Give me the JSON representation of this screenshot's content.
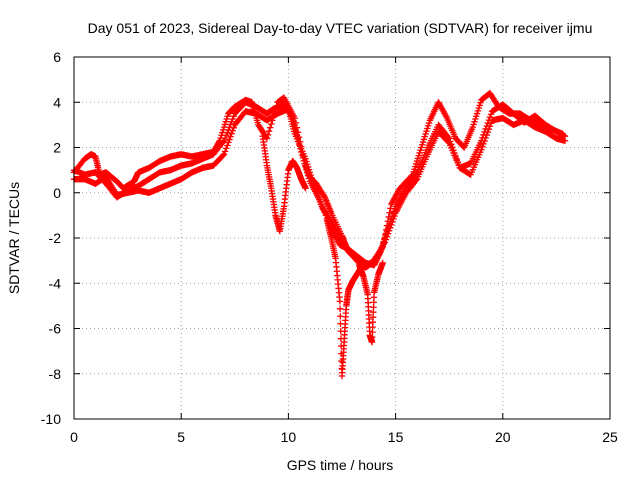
{
  "chart_data": {
    "type": "scatter",
    "title": "Day 051 of 2023, Sidereal Day-to-day VTEC variation (SDTVAR) for receiver ijmu",
    "xlabel": "GPS time / hours",
    "ylabel": "SDTVAR / TECUs",
    "xlim": [
      0,
      25
    ],
    "ylim": [
      -10,
      6
    ],
    "xticks": [
      0,
      5,
      10,
      15,
      20,
      25
    ],
    "yticks": [
      -10,
      -8,
      -6,
      -4,
      -2,
      0,
      2,
      4,
      6
    ],
    "grid": true,
    "legend": "none",
    "marker": "plus",
    "series_color": "#ff0000",
    "series": [
      {
        "x": [
          0.0,
          0.5,
          0.8,
          1.0,
          1.2,
          1.5,
          2.0,
          2.3,
          2.8,
          3.0,
          3.5,
          4.0,
          4.5,
          5.0,
          5.5,
          6.0,
          6.5,
          6.8,
          7.2,
          7.5,
          8.0,
          8.3,
          8.6,
          9.0,
          9.5,
          9.8,
          10.3,
          10.8,
          11.0,
          11.3,
          11.7,
          12.0,
          12.5,
          12.7,
          13.2,
          13.6,
          13.9,
          14.4,
          14.8,
          15.2,
          15.8,
          16.2,
          16.6,
          17.0,
          17.4,
          17.8,
          18.2,
          18.6,
          19.0,
          19.4,
          19.8,
          20.3,
          20.8,
          21.3,
          21.8,
          22.3,
          22.8
        ],
        "y": [
          0.9,
          1.5,
          1.7,
          1.6,
          0.8,
          0.9,
          0.5,
          0.2,
          0.5,
          0.9,
          1.1,
          1.4,
          1.6,
          1.7,
          1.6,
          1.7,
          1.8,
          2.3,
          3.5,
          3.8,
          4.1,
          4.0,
          3.0,
          2.4,
          4.0,
          4.2,
          3.3,
          1.2,
          0.7,
          0.4,
          -0.2,
          -0.9,
          -1.9,
          -2.4,
          -2.9,
          -3.3,
          -3.1,
          -2.4,
          -0.5,
          0.2,
          0.8,
          2.0,
          3.2,
          4.0,
          3.3,
          2.4,
          2.0,
          2.9,
          4.1,
          4.4,
          3.8,
          3.5,
          3.5,
          3.2,
          3.0,
          2.8,
          2.6
        ]
      },
      {
        "x": [
          0.0,
          0.5,
          1.0,
          1.5,
          2.0,
          2.5,
          3.0,
          3.5,
          4.0,
          4.5,
          5.0,
          5.5,
          6.0,
          6.5,
          7.0,
          7.5,
          8.0,
          8.5,
          9.0,
          9.3,
          9.8,
          10.2,
          10.6,
          11.0,
          11.5,
          12.0,
          12.4,
          12.8,
          13.2,
          13.6,
          14.0,
          14.3,
          14.6,
          15.0,
          15.5,
          16.0,
          16.5,
          17.0,
          17.5,
          18.0,
          18.5,
          19.0,
          19.5,
          20.0,
          20.5,
          21.0,
          21.5,
          22.0,
          22.5,
          22.9
        ],
        "y": [
          1.0,
          0.8,
          0.9,
          0.4,
          -0.2,
          0.1,
          0.3,
          0.6,
          0.9,
          1.0,
          1.2,
          1.3,
          1.5,
          1.7,
          2.3,
          3.5,
          4.0,
          3.8,
          3.5,
          3.7,
          3.9,
          3.3,
          1.8,
          0.5,
          -0.4,
          -1.6,
          -2.3,
          -2.5,
          -2.8,
          -3.1,
          -3.2,
          -2.6,
          -1.7,
          -0.6,
          0.3,
          0.9,
          2.0,
          3.0,
          2.4,
          1.1,
          1.3,
          2.3,
          3.6,
          3.9,
          3.5,
          3.1,
          3.4,
          3.0,
          2.7,
          2.5
        ]
      },
      {
        "x": [
          0.0,
          0.5,
          1.0,
          1.5,
          2.0,
          2.5,
          3.0,
          3.5,
          4.0,
          4.5,
          5.0,
          5.5,
          6.0,
          6.5,
          7.0,
          7.5,
          8.0,
          8.5,
          9.0,
          9.5,
          10.0,
          10.3,
          10.8,
          11.2,
          11.6,
          12.0,
          12.4,
          12.8,
          13.2,
          13.5,
          14.0,
          14.5,
          15.0,
          15.5,
          16.0,
          16.5,
          17.0,
          17.5,
          18.0,
          18.5,
          19.0,
          19.5,
          20.0,
          20.5,
          21.0,
          21.5,
          22.0,
          22.5,
          22.9
        ],
        "y": [
          0.6,
          0.6,
          0.4,
          0.7,
          -0.1,
          0.0,
          0.1,
          0.0,
          0.2,
          0.4,
          0.6,
          0.9,
          1.1,
          1.2,
          1.7,
          3.0,
          3.6,
          3.5,
          3.2,
          3.5,
          3.7,
          2.6,
          1.5,
          0.3,
          -0.7,
          -1.3,
          -2.0,
          -2.6,
          -3.0,
          -3.3,
          -3.0,
          -2.2,
          -0.9,
          0.0,
          0.6,
          1.7,
          2.7,
          2.2,
          1.1,
          0.8,
          1.9,
          3.2,
          3.3,
          3.0,
          3.2,
          2.9,
          2.7,
          2.4,
          2.3
        ]
      },
      {
        "x": [
          8.8,
          9.0,
          9.2,
          9.4,
          9.6,
          9.8,
          10.0,
          10.2,
          10.4,
          10.6,
          10.8
        ],
        "y": [
          2.5,
          1.2,
          0.2,
          -1.0,
          -1.7,
          -0.6,
          1.0,
          1.4,
          1.1,
          0.6,
          0.2
        ]
      },
      {
        "x": [
          11.8,
          12.0,
          12.2,
          12.4,
          12.5,
          12.6,
          12.7,
          12.8,
          13.0,
          13.2,
          13.4
        ],
        "y": [
          -1.2,
          -2.0,
          -2.9,
          -4.8,
          -8.1,
          -6.6,
          -5.0,
          -4.3,
          -3.9,
          -3.6,
          -3.3
        ]
      },
      {
        "x": [
          13.3,
          13.5,
          13.7,
          13.8,
          13.9,
          14.0,
          14.2,
          14.4
        ],
        "y": [
          -3.2,
          -3.7,
          -4.5,
          -6.3,
          -6.6,
          -4.4,
          -3.6,
          -3.1
        ]
      }
    ]
  }
}
